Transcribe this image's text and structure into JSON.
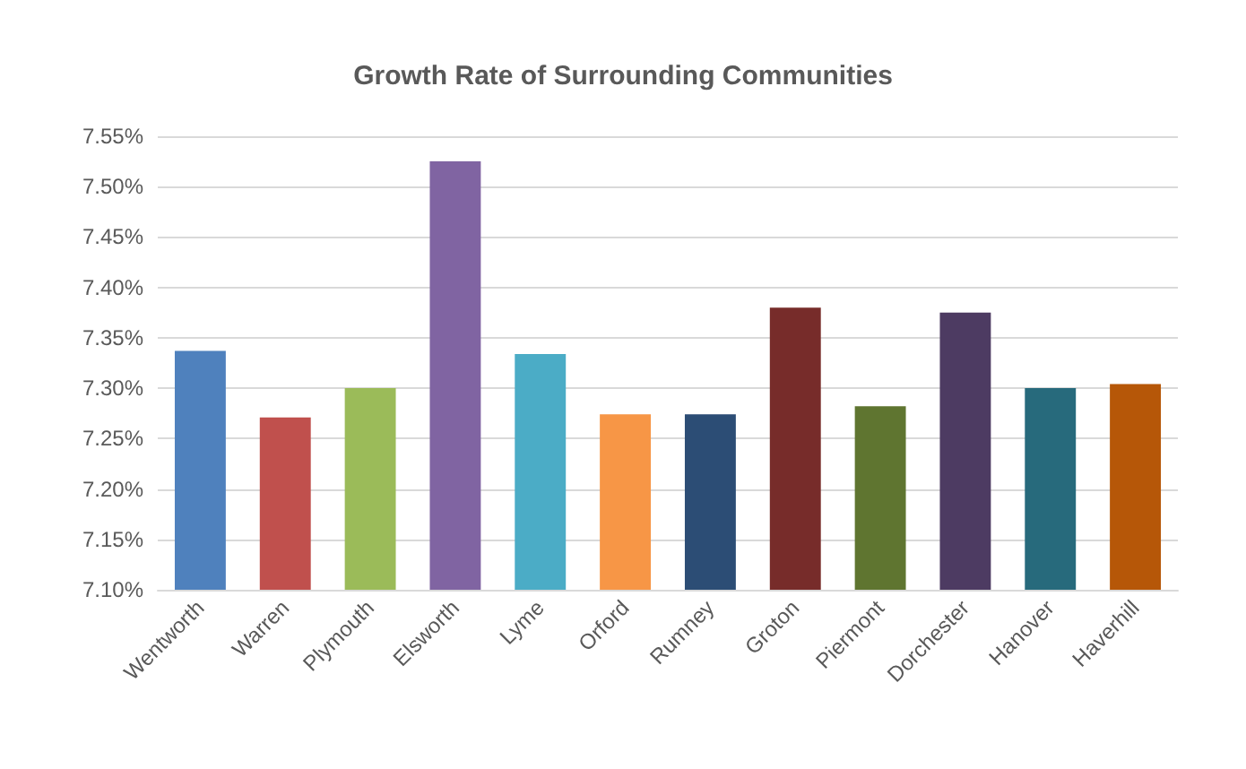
{
  "chart_data": {
    "type": "bar",
    "title": "Growth Rate of Surrounding Communities",
    "categories": [
      "Wentworth",
      "Warren",
      "Plymouth",
      "Elsworth",
      "Lyme",
      "Orford",
      "Rumney",
      "Groton",
      "Piermont",
      "Dorchester",
      "Hanover",
      "Haverhill"
    ],
    "values": [
      7.337,
      7.271,
      7.3,
      7.525,
      7.334,
      7.274,
      7.274,
      7.38,
      7.282,
      7.375,
      7.3,
      7.304
    ],
    "colors": [
      "#4f81bd",
      "#c0504d",
      "#9bbb59",
      "#8064a2",
      "#4bacc6",
      "#f79646",
      "#2c4d75",
      "#772c2a",
      "#5f7530",
      "#4d3b62",
      "#276a7c",
      "#b65708"
    ],
    "ylim": [
      7.1,
      7.55
    ],
    "yticks": [
      {
        "value": 7.1,
        "label": "7.10%"
      },
      {
        "value": 7.15,
        "label": "7.15%"
      },
      {
        "value": 7.2,
        "label": "7.20%"
      },
      {
        "value": 7.25,
        "label": "7.25%"
      },
      {
        "value": 7.3,
        "label": "7.30%"
      },
      {
        "value": 7.35,
        "label": "7.35%"
      },
      {
        "value": 7.4,
        "label": "7.40%"
      },
      {
        "value": 7.45,
        "label": "7.45%"
      },
      {
        "value": 7.5,
        "label": "7.50%"
      },
      {
        "value": 7.55,
        "label": "7.55%"
      }
    ],
    "grid": true
  }
}
